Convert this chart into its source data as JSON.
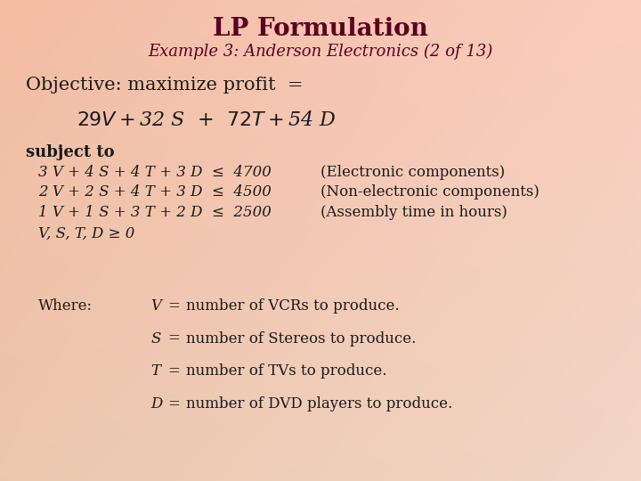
{
  "title": "LP Formulation",
  "subtitle": "Example 3: Anderson Electronics (2 of 13)",
  "title_color": "#5C0020",
  "body_color": "#1A1A1A",
  "objective_line1": "Objective: maximize profit  =",
  "objective_line2": "$29 V  +  $32 S  +  $72 T  +  $54 D",
  "subject_to": "subject to",
  "constraints": [
    "3 V + 4 S + 4 T + 3 D  ≤  4700",
    "2 V + 2 S + 4 T + 3 D  ≤  4500",
    "1 V + 1 S + 3 T + 2 D  ≤  2500",
    "V, S, T, D ≥ 0"
  ],
  "constraint_comments": [
    "(Electronic components)",
    "(Non-electronic components)",
    "(Assembly time in hours)",
    ""
  ],
  "where_label": "Where:",
  "where_lines": [
    [
      "V",
      "number of VCRs to produce."
    ],
    [
      "S",
      "number of Stereos to produce."
    ],
    [
      "T",
      "number of TVs to produce."
    ],
    [
      "D",
      "number of DVD players to produce."
    ]
  ]
}
